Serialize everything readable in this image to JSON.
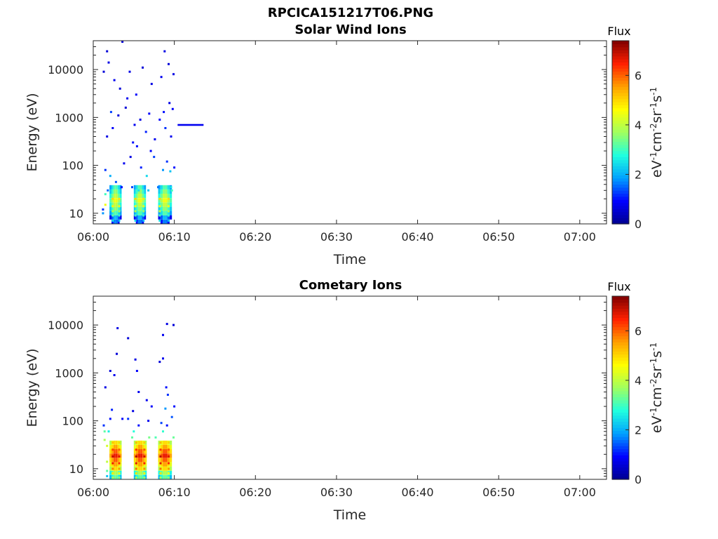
{
  "figure_title": "RPCICA151217T06.PNG",
  "colors": {
    "colormap": [
      "#00008f",
      "#0000ff",
      "#00a0ff",
      "#20ffdf",
      "#a0ff60",
      "#ffff00",
      "#ffa000",
      "#ff2000",
      "#800000"
    ]
  },
  "chart_data": [
    {
      "type": "heatmap",
      "title": "Solar Wind Ions",
      "xlabel": "Time",
      "ylabel": "Energy (eV)",
      "x_ticks": [
        "06:00",
        "06:10",
        "06:20",
        "06:30",
        "06:40",
        "06:50",
        "07:00"
      ],
      "x_tick_minutes": [
        0,
        10,
        20,
        30,
        40,
        50,
        60
      ],
      "xlim_minutes": [
        0,
        63.3
      ],
      "y_scale": "log",
      "y_ticks": [
        "10",
        "100",
        "1000",
        "10000"
      ],
      "y_tick_values": [
        10,
        100,
        1000,
        10000
      ],
      "ylim": [
        6,
        40000
      ],
      "colorbar": {
        "title": "Flux",
        "label": "eV-1cm-2sr-1s-1",
        "ticks": [
          "0",
          "2",
          "4",
          "6"
        ],
        "tick_values": [
          0,
          2,
          4,
          6
        ],
        "range": [
          0,
          7.4
        ]
      },
      "bursts_minutes": [
        [
          2.0,
          3.5
        ],
        [
          5.0,
          6.5
        ],
        [
          8.0,
          9.7
        ]
      ],
      "line_segment": {
        "t_start": 10.4,
        "t_end": 13.6,
        "energy_eV": 700,
        "flux": 0.8
      },
      "cells": [
        [
          1.2,
          12,
          1.2
        ],
        [
          1.2,
          10,
          1.8
        ],
        [
          1.5,
          25,
          3.0
        ],
        [
          1.5,
          15,
          4.5
        ],
        [
          2.4,
          20,
          5.0
        ],
        [
          2.4,
          14,
          4.7
        ],
        [
          2.4,
          11,
          4.0
        ],
        [
          2.4,
          9,
          3.2
        ],
        [
          2.4,
          7,
          2.5
        ],
        [
          3.2,
          20,
          4.8
        ],
        [
          3.2,
          14,
          4.5
        ],
        [
          3.2,
          11,
          3.8
        ],
        [
          3.2,
          9,
          3.0
        ],
        [
          3.2,
          7,
          2.2
        ],
        [
          1.8,
          30,
          1.5
        ],
        [
          3.5,
          35,
          1.0
        ],
        [
          5.2,
          20,
          5.0
        ],
        [
          5.2,
          14,
          4.6
        ],
        [
          5.2,
          11,
          3.9
        ],
        [
          5.2,
          9,
          3.0
        ],
        [
          5.2,
          7,
          2.4
        ],
        [
          6.2,
          20,
          4.8
        ],
        [
          6.2,
          14,
          4.4
        ],
        [
          6.2,
          11,
          3.7
        ],
        [
          6.2,
          9,
          2.9
        ],
        [
          6.2,
          7,
          2.1
        ],
        [
          4.8,
          35,
          1.3
        ],
        [
          5.6,
          30,
          2.5
        ],
        [
          6.8,
          30,
          2.2
        ],
        [
          8.2,
          20,
          5.0
        ],
        [
          8.2,
          14,
          4.7
        ],
        [
          8.2,
          11,
          4.0
        ],
        [
          8.2,
          9,
          3.1
        ],
        [
          8.2,
          7,
          2.4
        ],
        [
          9.3,
          20,
          4.9
        ],
        [
          9.3,
          14,
          4.5
        ],
        [
          9.3,
          11,
          3.8
        ],
        [
          9.3,
          9,
          2.9
        ],
        [
          9.3,
          7,
          2.2
        ],
        [
          8.0,
          35,
          1.6
        ],
        [
          9.6,
          35,
          2.6
        ],
        [
          9.7,
          30,
          3.0
        ],
        [
          1.5,
          80,
          1.2
        ],
        [
          2.1,
          60,
          2.0
        ],
        [
          2.8,
          45,
          1.4
        ],
        [
          3.8,
          110,
          0.8
        ],
        [
          4.6,
          150,
          0.7
        ],
        [
          5.4,
          250,
          1.0
        ],
        [
          5.9,
          90,
          1.1
        ],
        [
          6.6,
          60,
          2.4
        ],
        [
          7.1,
          200,
          0.9
        ],
        [
          7.5,
          150,
          1.3
        ],
        [
          8.6,
          80,
          1.8
        ],
        [
          9.1,
          120,
          1.2
        ],
        [
          9.5,
          75,
          2.2
        ],
        [
          10.0,
          90,
          1.0
        ],
        [
          1.7,
          400,
          0.7
        ],
        [
          2.4,
          600,
          0.9
        ],
        [
          3.1,
          1100,
          0.6
        ],
        [
          4.2,
          2500,
          0.8
        ],
        [
          4.9,
          300,
          1.0
        ],
        [
          5.8,
          900,
          0.7
        ],
        [
          6.5,
          500,
          1.1
        ],
        [
          7.6,
          350,
          0.8
        ],
        [
          8.2,
          900,
          0.9
        ],
        [
          8.9,
          600,
          1.2
        ],
        [
          9.4,
          2000,
          0.7
        ],
        [
          9.8,
          1500,
          0.9
        ],
        [
          1.3,
          9000,
          0.6
        ],
        [
          1.9,
          14000,
          0.7
        ],
        [
          2.6,
          6000,
          0.8
        ],
        [
          3.3,
          4000,
          0.6
        ],
        [
          4.5,
          9000,
          0.7
        ],
        [
          5.3,
          3000,
          0.9
        ],
        [
          6.1,
          11000,
          0.6
        ],
        [
          7.2,
          5000,
          0.7
        ],
        [
          8.4,
          7000,
          0.8
        ],
        [
          9.3,
          13000,
          0.6
        ],
        [
          9.9,
          8000,
          0.7
        ],
        [
          1.7,
          24000,
          0.6
        ],
        [
          3.6,
          38000,
          0.6
        ],
        [
          8.8,
          24000,
          0.7
        ],
        [
          2.2,
          1300,
          1.3
        ],
        [
          4.0,
          1600,
          0.6
        ],
        [
          5.1,
          700,
          0.8
        ],
        [
          6.9,
          1200,
          0.9
        ],
        [
          8.7,
          1300,
          1.0
        ],
        [
          9.6,
          400,
          0.8
        ]
      ]
    },
    {
      "type": "heatmap",
      "title": "Cometary Ions",
      "xlabel": "Time",
      "ylabel": "Energy (eV)",
      "x_ticks": [
        "06:00",
        "06:10",
        "06:20",
        "06:30",
        "06:40",
        "06:50",
        "07:00"
      ],
      "x_tick_minutes": [
        0,
        10,
        20,
        30,
        40,
        50,
        60
      ],
      "xlim_minutes": [
        0,
        63.3
      ],
      "y_scale": "log",
      "y_ticks": [
        "10",
        "100",
        "1000",
        "10000"
      ],
      "y_tick_values": [
        10,
        100,
        1000,
        10000
      ],
      "ylim": [
        6,
        40000
      ],
      "colorbar": {
        "title": "Flux",
        "label": "eV-1cm-2sr-1s-1",
        "ticks": [
          "0",
          "2",
          "4",
          "6"
        ],
        "tick_values": [
          0,
          2,
          4,
          6
        ],
        "range": [
          0,
          7.4
        ]
      },
      "bursts_minutes": [
        [
          2.0,
          3.5
        ],
        [
          5.0,
          6.6
        ],
        [
          8.0,
          9.7
        ]
      ],
      "cells": [
        [
          1.4,
          60,
          3.2
        ],
        [
          1.4,
          40,
          3.8
        ],
        [
          1.7,
          30,
          4.2
        ],
        [
          1.7,
          14,
          4.0
        ],
        [
          1.7,
          9,
          3.2
        ],
        [
          1.7,
          7,
          2.2
        ],
        [
          2.4,
          35,
          5.2
        ],
        [
          2.4,
          25,
          6.2
        ],
        [
          2.4,
          18,
          6.9
        ],
        [
          2.4,
          13,
          6.6
        ],
        [
          2.4,
          10,
          5.8
        ],
        [
          2.4,
          8,
          4.8
        ],
        [
          2.4,
          6.5,
          3.8
        ],
        [
          3.2,
          35,
          5.0
        ],
        [
          3.2,
          25,
          6.0
        ],
        [
          3.2,
          18,
          6.7
        ],
        [
          3.2,
          13,
          6.4
        ],
        [
          3.2,
          10,
          5.6
        ],
        [
          3.2,
          8,
          4.6
        ],
        [
          3.2,
          6.5,
          3.6
        ],
        [
          5.3,
          35,
          5.3
        ],
        [
          5.3,
          25,
          6.3
        ],
        [
          5.3,
          18,
          7.0
        ],
        [
          5.3,
          13,
          6.7
        ],
        [
          5.3,
          10,
          5.9
        ],
        [
          5.3,
          8,
          4.9
        ],
        [
          5.3,
          6.5,
          3.9
        ],
        [
          6.3,
          35,
          5.1
        ],
        [
          6.3,
          25,
          6.1
        ],
        [
          6.3,
          18,
          6.8
        ],
        [
          6.3,
          13,
          6.5
        ],
        [
          6.3,
          10,
          5.7
        ],
        [
          6.3,
          8,
          4.7
        ],
        [
          6.3,
          6.5,
          3.7
        ],
        [
          8.3,
          35,
          5.3
        ],
        [
          8.3,
          25,
          6.3
        ],
        [
          8.3,
          18,
          7.0
        ],
        [
          8.3,
          13,
          6.7
        ],
        [
          8.3,
          10,
          5.9
        ],
        [
          8.3,
          8,
          4.9
        ],
        [
          8.3,
          6.5,
          3.9
        ],
        [
          9.3,
          35,
          5.0
        ],
        [
          9.3,
          25,
          6.0
        ],
        [
          9.3,
          18,
          6.7
        ],
        [
          9.3,
          13,
          6.4
        ],
        [
          9.3,
          10,
          5.6
        ],
        [
          9.3,
          8,
          4.6
        ],
        [
          9.3,
          6.5,
          3.6
        ],
        [
          4.8,
          45,
          3.2
        ],
        [
          6.9,
          45,
          3.4
        ],
        [
          7.7,
          45,
          3.1
        ],
        [
          9.9,
          45,
          3.3
        ],
        [
          1.9,
          60,
          2.6
        ],
        [
          5.0,
          60,
          2.8
        ],
        [
          8.6,
          60,
          2.9
        ],
        [
          1.3,
          80,
          1.2
        ],
        [
          2.1,
          110,
          1.0
        ],
        [
          3.6,
          110,
          0.9
        ],
        [
          4.3,
          110,
          1.2
        ],
        [
          5.6,
          80,
          1.0
        ],
        [
          6.8,
          100,
          0.8
        ],
        [
          8.4,
          90,
          1.3
        ],
        [
          9.1,
          80,
          1.0
        ],
        [
          9.7,
          120,
          1.4
        ],
        [
          2.3,
          170,
          1.1
        ],
        [
          4.9,
          160,
          0.7
        ],
        [
          7.2,
          200,
          0.9
        ],
        [
          8.9,
          180,
          1.8
        ],
        [
          9.2,
          350,
          1.2
        ],
        [
          10.0,
          200,
          1.0
        ],
        [
          6.6,
          270,
          0.8
        ],
        [
          1.5,
          500,
          0.7
        ],
        [
          2.1,
          1100,
          0.6
        ],
        [
          2.6,
          900,
          0.8
        ],
        [
          5.2,
          1900,
          0.7
        ],
        [
          5.6,
          400,
          0.8
        ],
        [
          8.2,
          1700,
          0.6
        ],
        [
          8.6,
          2000,
          0.8
        ],
        [
          9.0,
          500,
          1.0
        ],
        [
          2.9,
          2500,
          0.6
        ],
        [
          3.0,
          8600,
          0.7
        ],
        [
          4.3,
          5300,
          0.6
        ],
        [
          5.4,
          1100,
          0.9
        ],
        [
          8.6,
          6200,
          0.8
        ],
        [
          9.1,
          10500,
          0.7
        ],
        [
          9.9,
          10000,
          0.6
        ]
      ]
    }
  ]
}
